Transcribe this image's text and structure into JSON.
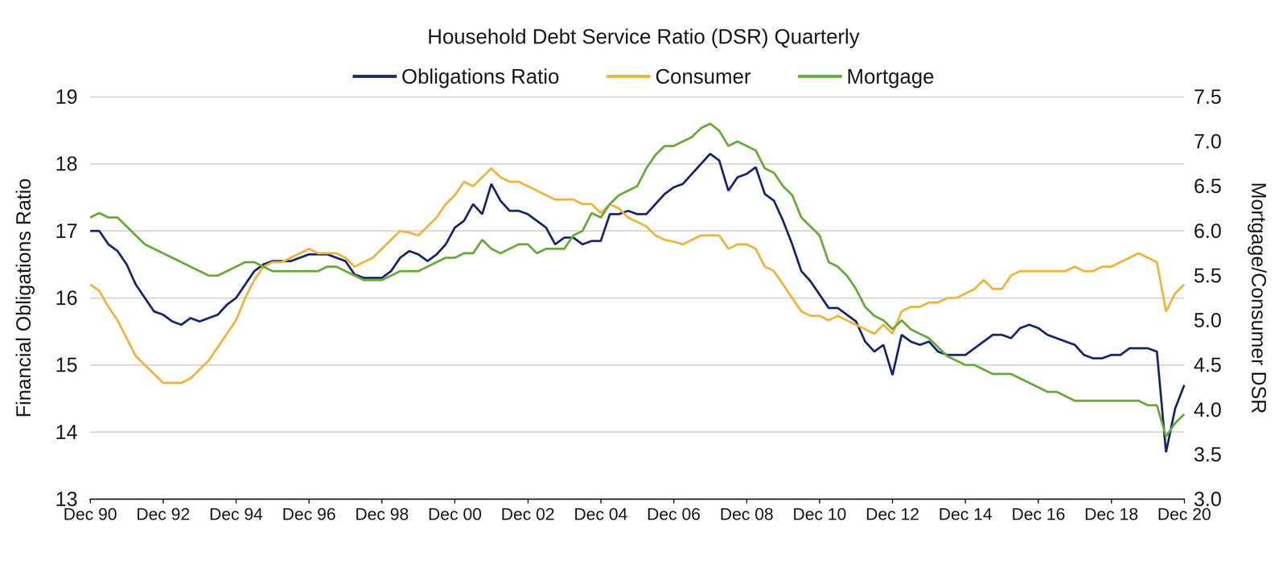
{
  "chart_data": {
    "type": "line",
    "title": "Household Debt Service Ratio (DSR) Quarterly",
    "y_label": "Financial Obligations Ratio",
    "y2_label": "Mortgage/Consumer DSR",
    "categories": [
      "Dec 90",
      null,
      null,
      null,
      null,
      null,
      null,
      null,
      "Dec 92",
      null,
      null,
      null,
      null,
      null,
      null,
      null,
      "Dec 94",
      null,
      null,
      null,
      null,
      null,
      null,
      null,
      "Dec 96",
      null,
      null,
      null,
      null,
      null,
      null,
      null,
      "Dec 98",
      null,
      null,
      null,
      null,
      null,
      null,
      null,
      "Dec 00",
      null,
      null,
      null,
      null,
      null,
      null,
      null,
      "Dec 02",
      null,
      null,
      null,
      null,
      null,
      null,
      null,
      "Dec 04",
      null,
      null,
      null,
      null,
      null,
      null,
      null,
      "Dec 06",
      null,
      null,
      null,
      null,
      null,
      null,
      null,
      "Dec 08",
      null,
      null,
      null,
      null,
      null,
      null,
      null,
      "Dec 10",
      null,
      null,
      null,
      null,
      null,
      null,
      null,
      "Dec 12",
      null,
      null,
      null,
      null,
      null,
      null,
      null,
      "Dec 14",
      null,
      null,
      null,
      null,
      null,
      null,
      null,
      "Dec 16",
      null,
      null,
      null,
      null,
      null,
      null,
      null,
      "Dec 18",
      null,
      null,
      null,
      null,
      null,
      null,
      null,
      "Dec 20"
    ],
    "series": [
      {
        "name": "Obligations Ratio",
        "color": "#1c2a6b",
        "values": [
          17.0,
          17.0,
          16.8,
          16.7,
          16.5,
          16.2,
          16.0,
          15.8,
          15.75,
          15.65,
          15.6,
          15.7,
          15.65,
          15.7,
          15.75,
          15.9,
          16.0,
          16.2,
          16.4,
          16.5,
          16.55,
          16.55,
          16.55,
          16.6,
          16.65,
          16.65,
          16.65,
          16.6,
          16.55,
          16.35,
          16.3,
          16.3,
          16.3,
          16.4,
          16.6,
          16.7,
          16.65,
          16.55,
          16.65,
          16.8,
          17.05,
          17.15,
          17.4,
          17.25,
          17.7,
          17.45,
          17.3,
          17.3,
          17.25,
          17.15,
          17.05,
          16.8,
          16.9,
          16.9,
          16.8,
          16.85,
          16.85,
          17.25,
          17.25,
          17.3,
          17.25,
          17.25,
          17.4,
          17.55,
          17.65,
          17.7,
          17.85,
          18.0,
          18.15,
          18.05,
          17.6,
          17.8,
          17.85,
          17.95,
          17.55,
          17.45,
          17.15,
          16.8,
          16.4,
          16.25,
          16.05,
          15.85,
          15.85,
          15.75,
          15.65,
          15.35,
          15.2,
          15.3,
          14.85,
          15.45,
          15.35,
          15.3,
          15.35,
          15.2,
          15.15,
          15.15,
          15.15,
          15.25,
          15.35,
          15.45,
          15.45,
          15.4,
          15.55,
          15.6,
          15.55,
          15.45,
          15.4,
          15.35,
          15.3,
          15.15,
          15.1,
          15.1,
          15.15,
          15.15,
          15.25,
          15.25,
          15.25,
          15.2,
          13.7,
          14.35,
          14.7
        ]
      },
      {
        "name": "Consumer",
        "color": "#efb43f",
        "axis": "y2",
        "values": [
          5.4,
          5.33,
          5.15,
          5.0,
          4.8,
          4.6,
          4.5,
          4.4,
          4.3,
          4.3,
          4.3,
          4.35,
          4.45,
          4.55,
          4.7,
          4.85,
          5.0,
          5.25,
          5.45,
          5.6,
          5.65,
          5.65,
          5.7,
          5.75,
          5.8,
          5.75,
          5.75,
          5.75,
          5.7,
          5.6,
          5.65,
          5.7,
          5.8,
          5.9,
          6.0,
          5.98,
          5.95,
          6.05,
          6.15,
          6.3,
          6.4,
          6.55,
          6.5,
          6.6,
          6.7,
          6.6,
          6.55,
          6.55,
          6.5,
          6.45,
          6.4,
          6.35,
          6.35,
          6.35,
          6.3,
          6.3,
          6.2,
          6.3,
          6.25,
          6.15,
          6.1,
          6.05,
          5.95,
          5.9,
          5.88,
          5.85,
          5.9,
          5.95,
          5.95,
          5.95,
          5.8,
          5.85,
          5.85,
          5.8,
          5.6,
          5.55,
          5.4,
          5.25,
          5.1,
          5.05,
          5.05,
          5.0,
          5.05,
          5.0,
          4.95,
          4.9,
          4.85,
          4.95,
          4.85,
          5.1,
          5.15,
          5.15,
          5.2,
          5.2,
          5.25,
          5.25,
          5.3,
          5.35,
          5.45,
          5.35,
          5.35,
          5.5,
          5.55,
          5.55,
          5.55,
          5.55,
          5.55,
          5.55,
          5.6,
          5.55,
          5.55,
          5.6,
          5.6,
          5.65,
          5.7,
          5.75,
          5.7,
          5.65,
          5.1,
          5.3,
          5.4
        ]
      },
      {
        "name": "Mortgage",
        "color": "#6aaa3b",
        "axis": "y2",
        "values": [
          6.15,
          6.2,
          6.15,
          6.15,
          6.05,
          5.95,
          5.85,
          5.8,
          5.75,
          5.7,
          5.65,
          5.6,
          5.55,
          5.5,
          5.5,
          5.55,
          5.6,
          5.65,
          5.65,
          5.6,
          5.55,
          5.55,
          5.55,
          5.55,
          5.55,
          5.55,
          5.6,
          5.6,
          5.55,
          5.5,
          5.45,
          5.45,
          5.45,
          5.5,
          5.55,
          5.55,
          5.55,
          5.6,
          5.65,
          5.7,
          5.7,
          5.75,
          5.75,
          5.9,
          5.8,
          5.75,
          5.8,
          5.85,
          5.85,
          5.75,
          5.8,
          5.8,
          5.8,
          5.95,
          6.0,
          6.2,
          6.15,
          6.3,
          6.4,
          6.45,
          6.5,
          6.7,
          6.85,
          6.95,
          6.95,
          7.0,
          7.05,
          7.15,
          7.2,
          7.12,
          6.95,
          7.0,
          6.95,
          6.9,
          6.7,
          6.65,
          6.5,
          6.4,
          6.15,
          6.05,
          5.95,
          5.65,
          5.6,
          5.5,
          5.35,
          5.15,
          5.05,
          5.0,
          4.9,
          5.0,
          4.9,
          4.85,
          4.8,
          4.7,
          4.6,
          4.55,
          4.5,
          4.5,
          4.45,
          4.4,
          4.4,
          4.4,
          4.35,
          4.3,
          4.25,
          4.2,
          4.2,
          4.15,
          4.1,
          4.1,
          4.1,
          4.1,
          4.1,
          4.1,
          4.1,
          4.1,
          4.05,
          4.05,
          3.7,
          3.85,
          3.95
        ]
      }
    ],
    "ylim": [
      13,
      19
    ],
    "yticks": [
      13,
      14,
      15,
      16,
      17,
      18,
      19
    ],
    "y2lim": [
      3,
      7.5
    ],
    "y2ticks": [
      {
        "value": 3,
        "label": "3.0"
      },
      3.5,
      {
        "value": 4,
        "label": "4.0"
      },
      4.5,
      {
        "value": 5,
        "label": "5.0"
      },
      5.5,
      {
        "value": 6,
        "label": "6.0"
      },
      6.5,
      {
        "value": 7,
        "label": "7.0"
      },
      7.5
    ],
    "grid": true,
    "legend": "top"
  }
}
